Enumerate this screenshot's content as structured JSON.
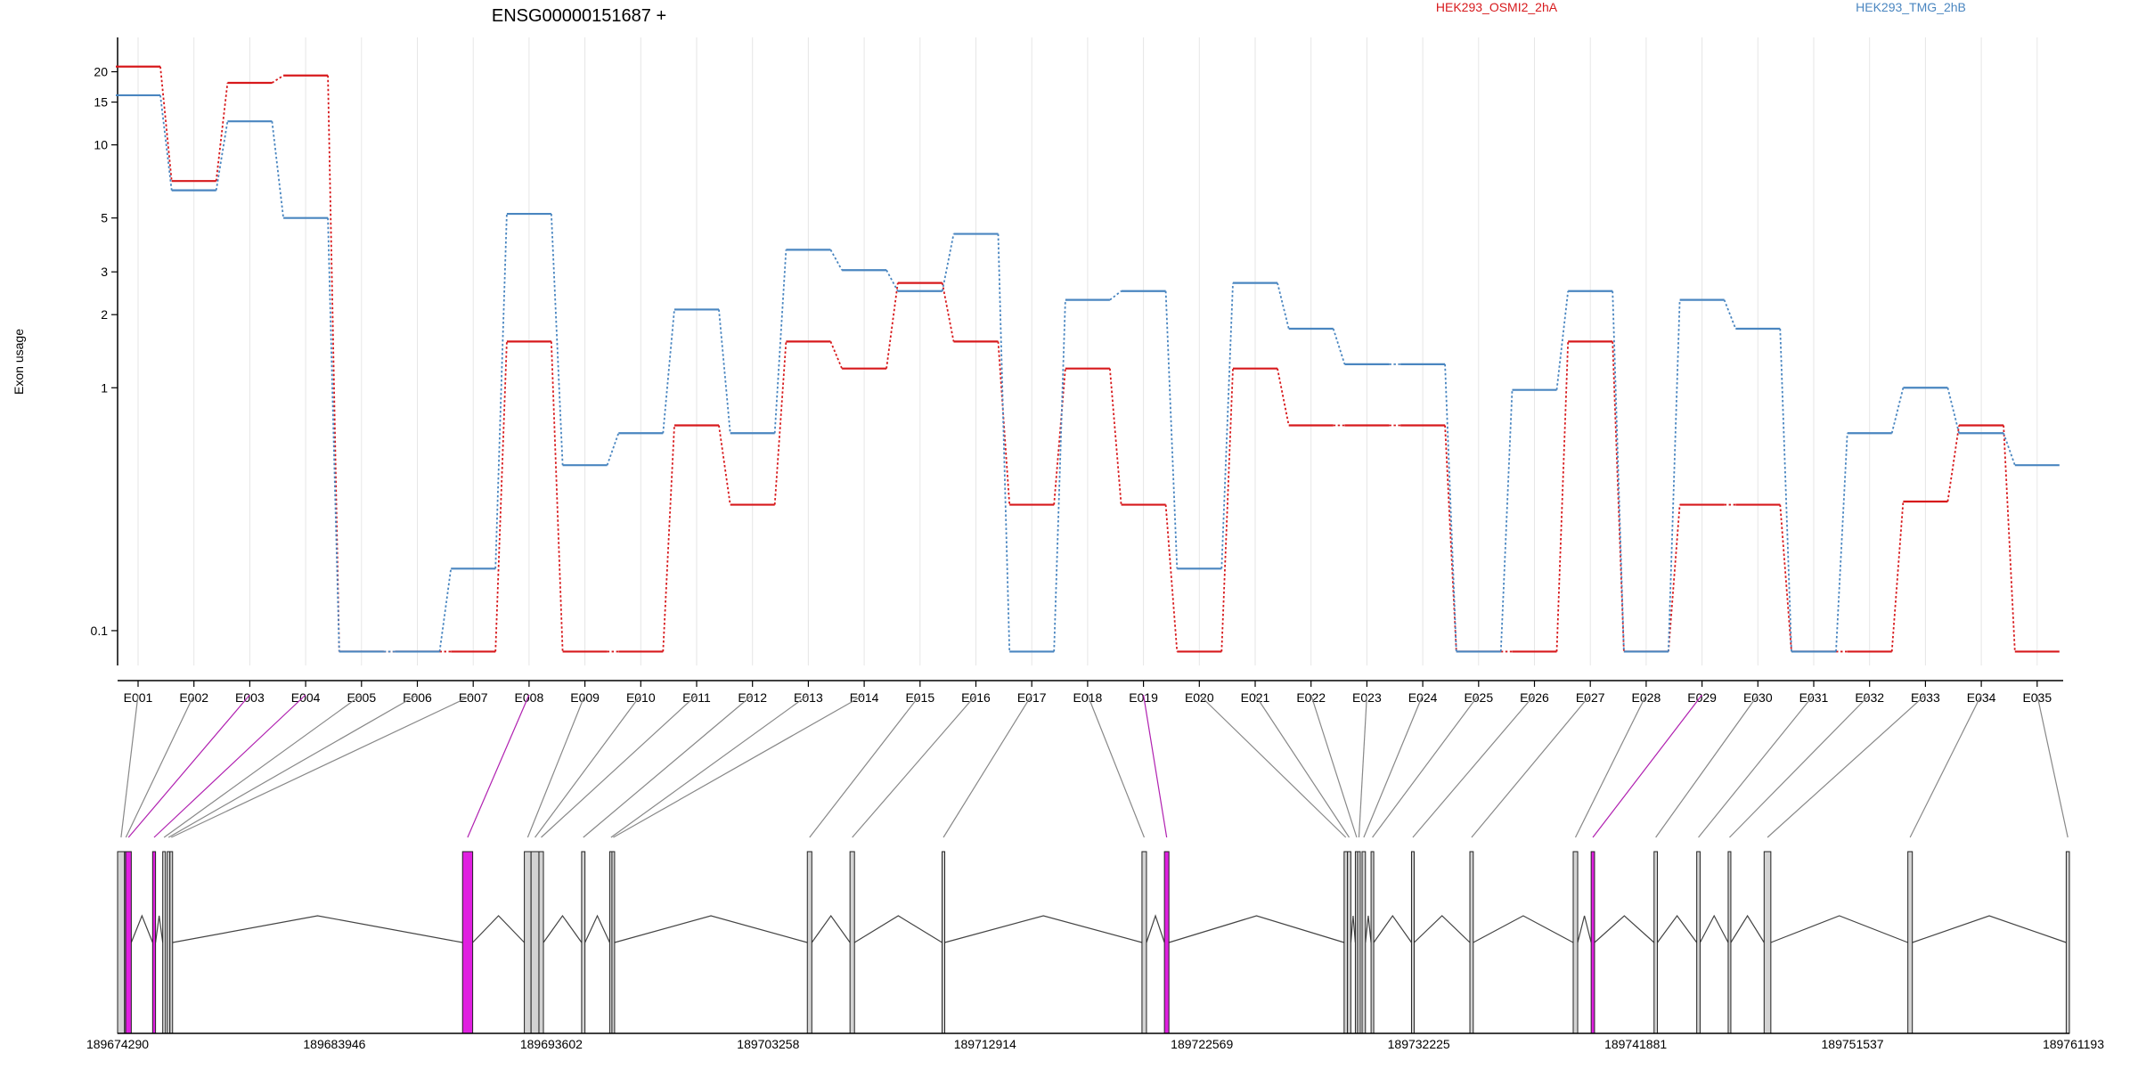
{
  "chart_data": {
    "type": "line",
    "title": "ENSG00000151687 +",
    "xlabel": "",
    "ylabel": "Exon usage",
    "y_scale": "log",
    "ylim": [
      0.075,
      27
    ],
    "y_ticks": [
      {
        "value": 0.1,
        "label": "0.1"
      },
      {
        "value": 1,
        "label": "1"
      },
      {
        "value": 2,
        "label": "2"
      },
      {
        "value": 3,
        "label": "3"
      },
      {
        "value": 5,
        "label": "5"
      },
      {
        "value": 10,
        "label": "10"
      },
      {
        "value": 15,
        "label": "15"
      },
      {
        "value": 20,
        "label": "20"
      }
    ],
    "grid": "vertical",
    "legend_placement": "top",
    "categories": [
      "E001",
      "E002",
      "E003",
      "E004",
      "E005",
      "E006",
      "E007",
      "E008",
      "E009",
      "E010",
      "E011",
      "E012",
      "E013",
      "E014",
      "E015",
      "E016",
      "E017",
      "E018",
      "E019",
      "E020",
      "E021",
      "E022",
      "E023",
      "E024",
      "E025",
      "E026",
      "E027",
      "E028",
      "E029",
      "E030",
      "E031",
      "E032",
      "E033",
      "E034",
      "E035"
    ],
    "series": [
      {
        "name": "HEK293_OSMI2_2hA",
        "color": "#d7191c",
        "values": [
          21.0,
          7.1,
          18.0,
          19.3,
          0.082,
          0.082,
          0.082,
          1.55,
          0.082,
          0.082,
          0.7,
          0.33,
          1.55,
          1.2,
          2.7,
          1.55,
          0.33,
          1.2,
          0.33,
          0.082,
          1.2,
          0.7,
          0.7,
          0.7,
          0.082,
          0.082,
          1.55,
          0.082,
          0.33,
          0.33,
          0.082,
          0.082,
          0.34,
          0.7,
          0.082
        ]
      },
      {
        "name": "HEK293_TMG_2hB",
        "color": "#4a86c0",
        "values": [
          16.0,
          6.5,
          12.5,
          5.0,
          0.082,
          0.082,
          0.18,
          5.2,
          0.48,
          0.65,
          2.1,
          0.65,
          3.7,
          3.05,
          2.5,
          4.3,
          0.082,
          2.3,
          2.5,
          0.18,
          2.7,
          1.75,
          1.25,
          1.25,
          0.082,
          0.98,
          2.5,
          0.082,
          2.3,
          1.75,
          0.082,
          0.65,
          1.0,
          0.65,
          0.48
        ]
      }
    ],
    "genomic_axis": {
      "range": [
        189674290,
        189761193
      ],
      "tick_labels": [
        "189674290",
        "189683946",
        "189693602",
        "189703258",
        "189712914",
        "189722569",
        "189732225",
        "189741881",
        "189751537",
        "189761193"
      ]
    },
    "exon_highlight_color": "#e020e0",
    "exons": [
      {
        "id": "E001",
        "start": 189674290,
        "end": 189674600,
        "highlight": false
      },
      {
        "id": "E002",
        "start": 189674600,
        "end": 189674650,
        "highlight": false
      },
      {
        "id": "E003",
        "start": 189674650,
        "end": 189674900,
        "highlight": true
      },
      {
        "id": "E004",
        "start": 189675850,
        "end": 189675980,
        "highlight": true
      },
      {
        "id": "E005",
        "start": 189676300,
        "end": 189676380,
        "highlight": false
      },
      {
        "id": "E006",
        "start": 189676500,
        "end": 189676580,
        "highlight": false
      },
      {
        "id": "E007",
        "start": 189676620,
        "end": 189676700,
        "highlight": false
      },
      {
        "id": "E008",
        "start": 189689650,
        "end": 189690100,
        "highlight": true
      },
      {
        "id": "E009",
        "start": 189692400,
        "end": 189692700,
        "highlight": false
      },
      {
        "id": "E010",
        "start": 189692700,
        "end": 189693050,
        "highlight": false
      },
      {
        "id": "E011",
        "start": 189693050,
        "end": 189693250,
        "highlight": false
      },
      {
        "id": "E012",
        "start": 189694950,
        "end": 189695100,
        "highlight": false
      },
      {
        "id": "E013",
        "start": 189696200,
        "end": 189696300,
        "highlight": false
      },
      {
        "id": "E014",
        "start": 189696300,
        "end": 189696400,
        "highlight": false
      },
      {
        "id": "E015",
        "start": 189705000,
        "end": 189705200,
        "highlight": false
      },
      {
        "id": "E016",
        "start": 189706900,
        "end": 189707100,
        "highlight": false
      },
      {
        "id": "E017",
        "start": 189711000,
        "end": 189711100,
        "highlight": false
      },
      {
        "id": "E018",
        "start": 189719900,
        "end": 189720100,
        "highlight": false
      },
      {
        "id": "E019",
        "start": 189720900,
        "end": 189721100,
        "highlight": true
      },
      {
        "id": "E020",
        "start": 189728900,
        "end": 189729050,
        "highlight": false
      },
      {
        "id": "E021",
        "start": 189729050,
        "end": 189729200,
        "highlight": false
      },
      {
        "id": "E022",
        "start": 189729400,
        "end": 189729500,
        "highlight": false
      },
      {
        "id": "E023",
        "start": 189729500,
        "end": 189729600,
        "highlight": false
      },
      {
        "id": "E024",
        "start": 189729700,
        "end": 189729850,
        "highlight": false
      },
      {
        "id": "E025",
        "start": 189730100,
        "end": 189730200,
        "highlight": false
      },
      {
        "id": "E026",
        "start": 189731900,
        "end": 189732000,
        "highlight": false
      },
      {
        "id": "E027",
        "start": 189734500,
        "end": 189734650,
        "highlight": false
      },
      {
        "id": "E028",
        "start": 189739100,
        "end": 189739300,
        "highlight": false
      },
      {
        "id": "E029",
        "start": 189739900,
        "end": 189740050,
        "highlight": true
      },
      {
        "id": "E030",
        "start": 189742700,
        "end": 189742850,
        "highlight": false
      },
      {
        "id": "E031",
        "start": 189744600,
        "end": 189744750,
        "highlight": false
      },
      {
        "id": "E032",
        "start": 189746000,
        "end": 189746100,
        "highlight": false
      },
      {
        "id": "E033",
        "start": 189747600,
        "end": 189747900,
        "highlight": false
      },
      {
        "id": "E034",
        "start": 189754000,
        "end": 189754200,
        "highlight": false
      },
      {
        "id": "E035",
        "start": 189761050,
        "end": 189761193,
        "highlight": false
      }
    ]
  }
}
